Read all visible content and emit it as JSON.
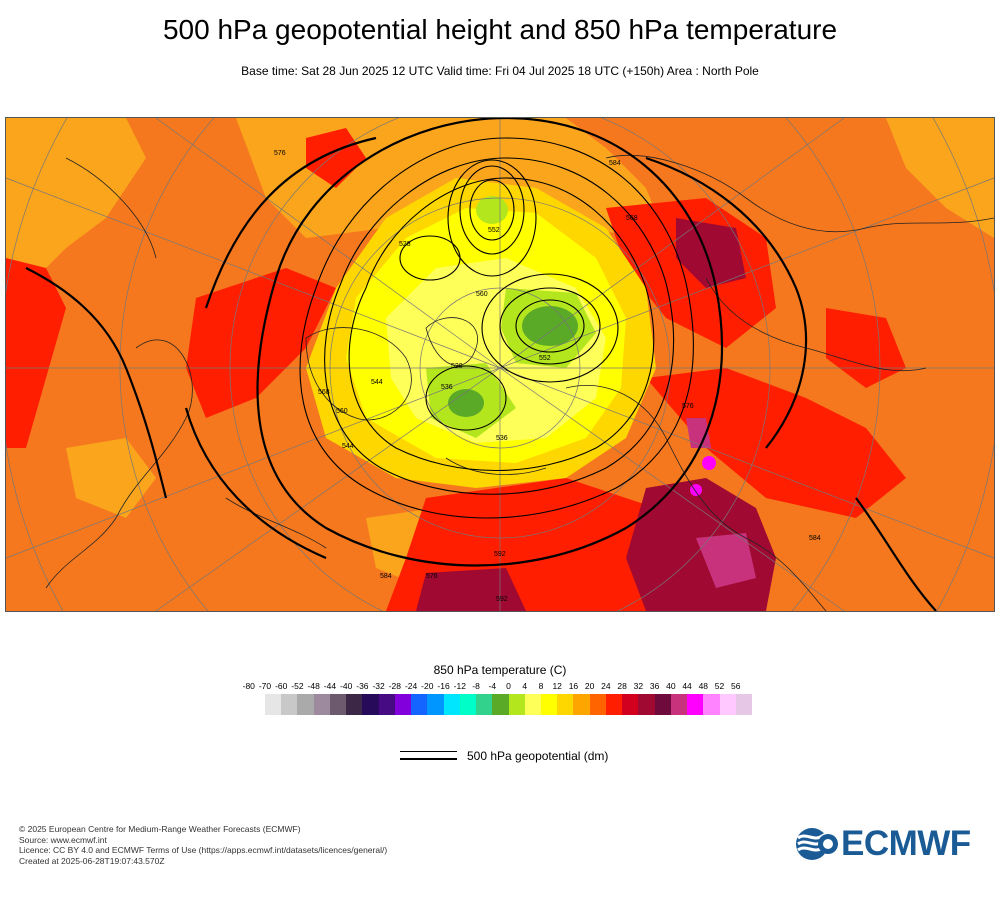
{
  "header": {
    "title": "500 hPa geopotential height and 850 hPa temperature",
    "subtitle": "Base time: Sat 28 Jun 2025 12 UTC Valid time: Fri 04 Jul 2025 18 UTC (+150h) Area : North Pole"
  },
  "map": {
    "contour_labels": [
      "584",
      "552",
      "528",
      "536",
      "576",
      "560",
      "544",
      "568",
      "592",
      "584",
      "576",
      "552",
      "528",
      "560",
      "584",
      "568",
      "592",
      "576",
      "536",
      "544"
    ]
  },
  "colorbar": {
    "title": "850 hPa temperature (C)",
    "ticks": [
      "-80",
      "-70",
      "-60",
      "-52",
      "-48",
      "-44",
      "-40",
      "-36",
      "-32",
      "-28",
      "-24",
      "-20",
      "-16",
      "-12",
      "-8",
      "-4",
      "0",
      "4",
      "8",
      "12",
      "16",
      "20",
      "24",
      "28",
      "32",
      "36",
      "40",
      "44",
      "48",
      "52",
      "56"
    ],
    "colors": [
      "#e6e6e6",
      "#c8c8c8",
      "#aaaaaa",
      "#9e8a9e",
      "#6e5a6e",
      "#3c2846",
      "#280a5a",
      "#460a82",
      "#8200dc",
      "#1464ff",
      "#0096ff",
      "#00e6ff",
      "#00ffc8",
      "#32d28c",
      "#5aaa28",
      "#b4e61e",
      "#ffff5a",
      "#ffff00",
      "#ffd700",
      "#ffa500",
      "#ff6400",
      "#ff1e00",
      "#d2001e",
      "#a00a32",
      "#6e0a3c",
      "#c8327d",
      "#ff00ff",
      "#ff82ff",
      "#ffc8ff",
      "#e6c8e6"
    ]
  },
  "legend": {
    "geopotential_label": "500 hPa geopotential (dm)"
  },
  "footer": {
    "copyright": "© 2025 European Centre for Medium-Range Weather Forecasts (ECMWF)",
    "source": "Source: www.ecmwf.int",
    "licence": "Licence: CC BY 4.0 and ECMWF Terms of Use (https://apps.ecmwf.int/datasets/licences/general/)",
    "created": "Created at 2025-06-28T19:07:43.570Z"
  },
  "logo": {
    "text": "ECMWF",
    "color": "#1b5b95"
  }
}
